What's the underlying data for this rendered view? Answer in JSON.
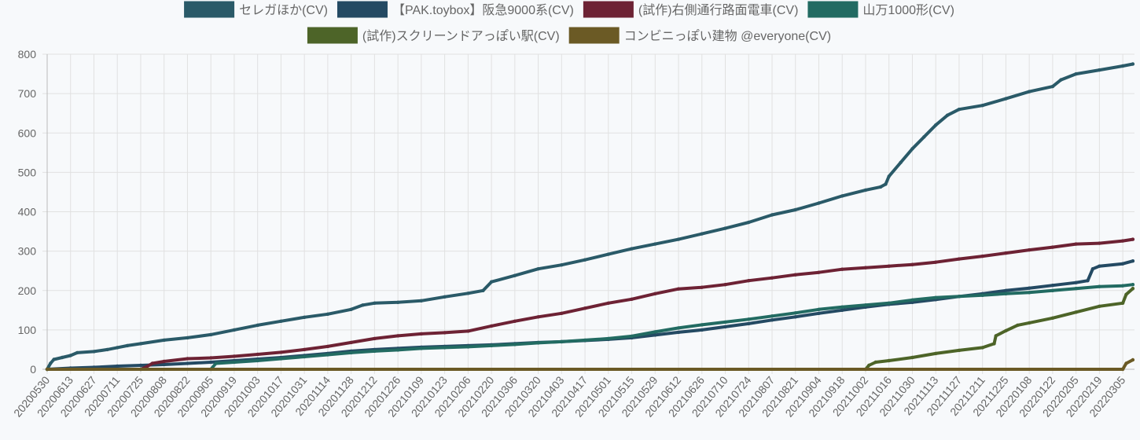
{
  "chart_data": {
    "type": "line",
    "legend_position": "top",
    "grid": true,
    "ylim": [
      0,
      800
    ],
    "yticks": [
      0,
      100,
      200,
      300,
      400,
      500,
      600,
      700,
      800
    ],
    "x_range": [
      "20200530",
      "20220312"
    ],
    "xticks": [
      "20200530",
      "20200613",
      "20200627",
      "20200711",
      "20200725",
      "20200808",
      "20200822",
      "20200905",
      "20200919",
      "20201003",
      "20201017",
      "20201031",
      "20201114",
      "20201128",
      "20201212",
      "20201226",
      "20210109",
      "20210123",
      "20210206",
      "20210220",
      "20210306",
      "20210320",
      "20210403",
      "20210417",
      "20210501",
      "20210515",
      "20210529",
      "20210612",
      "20210626",
      "20210710",
      "20210724",
      "20210807",
      "20210821",
      "20210904",
      "20210918",
      "20211002",
      "20211016",
      "20211030",
      "20211113",
      "20211127",
      "20211211",
      "20211225",
      "20220108",
      "20220122",
      "20220205",
      "20220219",
      "20220305"
    ],
    "series": [
      {
        "name": "セレガほか(CV)",
        "color": "#2a5a68",
        "points": [
          [
            "20200530",
            0
          ],
          [
            "20200601",
            15
          ],
          [
            "20200603",
            25
          ],
          [
            "20200608",
            30
          ],
          [
            "20200613",
            35
          ],
          [
            "20200617",
            42
          ],
          [
            "20200627",
            45
          ],
          [
            "20200705",
            50
          ],
          [
            "20200711",
            55
          ],
          [
            "20200717",
            60
          ],
          [
            "20200725",
            65
          ],
          [
            "20200808",
            74
          ],
          [
            "20200822",
            80
          ],
          [
            "20200905",
            88
          ],
          [
            "20200919",
            100
          ],
          [
            "20201003",
            112
          ],
          [
            "20201017",
            122
          ],
          [
            "20201031",
            132
          ],
          [
            "20201114",
            140
          ],
          [
            "20201128",
            152
          ],
          [
            "20201205",
            163
          ],
          [
            "20201212",
            168
          ],
          [
            "20201226",
            170
          ],
          [
            "20210109",
            174
          ],
          [
            "20210123",
            184
          ],
          [
            "20210206",
            193
          ],
          [
            "20210215",
            200
          ],
          [
            "20210220",
            222
          ],
          [
            "20210306",
            238
          ],
          [
            "20210320",
            255
          ],
          [
            "20210403",
            265
          ],
          [
            "20210417",
            278
          ],
          [
            "20210501",
            292
          ],
          [
            "20210515",
            306
          ],
          [
            "20210529",
            318
          ],
          [
            "20210612",
            330
          ],
          [
            "20210626",
            344
          ],
          [
            "20210710",
            358
          ],
          [
            "20210724",
            373
          ],
          [
            "20210807",
            392
          ],
          [
            "20210821",
            405
          ],
          [
            "20210904",
            422
          ],
          [
            "20210918",
            440
          ],
          [
            "20211002",
            455
          ],
          [
            "20211011",
            463
          ],
          [
            "20211014",
            470
          ],
          [
            "20211016",
            490
          ],
          [
            "20211023",
            525
          ],
          [
            "20211030",
            560
          ],
          [
            "20211106",
            590
          ],
          [
            "20211113",
            620
          ],
          [
            "20211120",
            645
          ],
          [
            "20211127",
            660
          ],
          [
            "20211211",
            670
          ],
          [
            "20211225",
            687
          ],
          [
            "20220108",
            705
          ],
          [
            "20220122",
            718
          ],
          [
            "20220127",
            735
          ],
          [
            "20220205",
            750
          ],
          [
            "20220219",
            760
          ],
          [
            "20220305",
            770
          ],
          [
            "20220311",
            775
          ]
        ]
      },
      {
        "name": "【PAK.toybox】阪急9000系(CV)",
        "color": "#244a63",
        "points": [
          [
            "20200530",
            0
          ],
          [
            "20200613",
            3
          ],
          [
            "20200627",
            5
          ],
          [
            "20200711",
            8
          ],
          [
            "20200725",
            10
          ],
          [
            "20200808",
            12
          ],
          [
            "20200822",
            15
          ],
          [
            "20200905",
            18
          ],
          [
            "20200919",
            22
          ],
          [
            "20201003",
            26
          ],
          [
            "20201017",
            30
          ],
          [
            "20201031",
            35
          ],
          [
            "20201114",
            40
          ],
          [
            "20201128",
            46
          ],
          [
            "20201212",
            50
          ],
          [
            "20201226",
            53
          ],
          [
            "20210109",
            56
          ],
          [
            "20210123",
            58
          ],
          [
            "20210206",
            60
          ],
          [
            "20210220",
            62
          ],
          [
            "20210306",
            65
          ],
          [
            "20210320",
            68
          ],
          [
            "20210403",
            70
          ],
          [
            "20210417",
            73
          ],
          [
            "20210501",
            76
          ],
          [
            "20210515",
            80
          ],
          [
            "20210529",
            87
          ],
          [
            "20210612",
            94
          ],
          [
            "20210626",
            100
          ],
          [
            "20210710",
            108
          ],
          [
            "20210724",
            116
          ],
          [
            "20210807",
            125
          ],
          [
            "20210821",
            133
          ],
          [
            "20210904",
            142
          ],
          [
            "20210918",
            150
          ],
          [
            "20211002",
            158
          ],
          [
            "20211016",
            165
          ],
          [
            "20211030",
            170
          ],
          [
            "20211113",
            177
          ],
          [
            "20211127",
            185
          ],
          [
            "20211211",
            192
          ],
          [
            "20211225",
            200
          ],
          [
            "20220108",
            206
          ],
          [
            "20220122",
            213
          ],
          [
            "20220205",
            220
          ],
          [
            "20220212",
            225
          ],
          [
            "20220215",
            255
          ],
          [
            "20220219",
            262
          ],
          [
            "20220305",
            268
          ],
          [
            "20220311",
            275
          ]
        ]
      },
      {
        "name": "(試作)右側通行路面電車(CV)",
        "color": "#6d2234",
        "points": [
          [
            "20200725",
            0
          ],
          [
            "20200728",
            5
          ],
          [
            "20200801",
            15
          ],
          [
            "20200808",
            20
          ],
          [
            "20200822",
            27
          ],
          [
            "20200905",
            29
          ],
          [
            "20200919",
            33
          ],
          [
            "20201003",
            38
          ],
          [
            "20201017",
            43
          ],
          [
            "20201031",
            50
          ],
          [
            "20201114",
            58
          ],
          [
            "20201128",
            68
          ],
          [
            "20201212",
            78
          ],
          [
            "20201226",
            85
          ],
          [
            "20210109",
            90
          ],
          [
            "20210123",
            93
          ],
          [
            "20210206",
            97
          ],
          [
            "20210220",
            110
          ],
          [
            "20210306",
            122
          ],
          [
            "20210320",
            133
          ],
          [
            "20210403",
            142
          ],
          [
            "20210417",
            155
          ],
          [
            "20210501",
            168
          ],
          [
            "20210515",
            178
          ],
          [
            "20210529",
            192
          ],
          [
            "20210612",
            204
          ],
          [
            "20210626",
            208
          ],
          [
            "20210710",
            215
          ],
          [
            "20210724",
            225
          ],
          [
            "20210807",
            232
          ],
          [
            "20210821",
            240
          ],
          [
            "20210904",
            246
          ],
          [
            "20210918",
            254
          ],
          [
            "20211002",
            258
          ],
          [
            "20211016",
            262
          ],
          [
            "20211030",
            266
          ],
          [
            "20211113",
            272
          ],
          [
            "20211127",
            280
          ],
          [
            "20211211",
            287
          ],
          [
            "20211225",
            295
          ],
          [
            "20220108",
            303
          ],
          [
            "20220122",
            310
          ],
          [
            "20220205",
            318
          ],
          [
            "20220219",
            320
          ],
          [
            "20220305",
            326
          ],
          [
            "20220311",
            330
          ]
        ]
      },
      {
        "name": "山万1000形(CV)",
        "color": "#226b62",
        "points": [
          [
            "20200530",
            0
          ],
          [
            "20200725",
            0
          ],
          [
            "20200905",
            0
          ],
          [
            "20200908",
            15
          ],
          [
            "20200919",
            18
          ],
          [
            "20201003",
            22
          ],
          [
            "20201017",
            27
          ],
          [
            "20201031",
            32
          ],
          [
            "20201114",
            37
          ],
          [
            "20201128",
            42
          ],
          [
            "20201212",
            46
          ],
          [
            "20201226",
            49
          ],
          [
            "20210109",
            53
          ],
          [
            "20210123",
            55
          ],
          [
            "20210206",
            57
          ],
          [
            "20210220",
            60
          ],
          [
            "20210306",
            63
          ],
          [
            "20210320",
            67
          ],
          [
            "20210403",
            70
          ],
          [
            "20210417",
            74
          ],
          [
            "20210501",
            78
          ],
          [
            "20210515",
            84
          ],
          [
            "20210529",
            95
          ],
          [
            "20210612",
            105
          ],
          [
            "20210626",
            113
          ],
          [
            "20210710",
            120
          ],
          [
            "20210724",
            127
          ],
          [
            "20210807",
            135
          ],
          [
            "20210821",
            143
          ],
          [
            "20210904",
            152
          ],
          [
            "20210918",
            158
          ],
          [
            "20211002",
            163
          ],
          [
            "20211016",
            168
          ],
          [
            "20211030",
            176
          ],
          [
            "20211113",
            182
          ],
          [
            "20211127",
            185
          ],
          [
            "20211211",
            188
          ],
          [
            "20211225",
            192
          ],
          [
            "20220108",
            195
          ],
          [
            "20220122",
            200
          ],
          [
            "20220205",
            205
          ],
          [
            "20220219",
            210
          ],
          [
            "20220305",
            212
          ],
          [
            "20220311",
            215
          ]
        ]
      },
      {
        "name": "(試作)スクリーンドアっぽい駅(CV)",
        "color": "#4d6428",
        "points": [
          [
            "20200530",
            0
          ],
          [
            "20211002",
            0
          ],
          [
            "20211004",
            10
          ],
          [
            "20211008",
            18
          ],
          [
            "20211016",
            22
          ],
          [
            "20211030",
            30
          ],
          [
            "20211113",
            40
          ],
          [
            "20211127",
            48
          ],
          [
            "20211211",
            55
          ],
          [
            "20211218",
            65
          ],
          [
            "20211219",
            85
          ],
          [
            "20211225",
            98
          ],
          [
            "20220101",
            112
          ],
          [
            "20220108",
            118
          ],
          [
            "20220122",
            130
          ],
          [
            "20220205",
            145
          ],
          [
            "20220219",
            160
          ],
          [
            "20220305",
            168
          ],
          [
            "20220307",
            190
          ],
          [
            "20220311",
            205
          ]
        ]
      },
      {
        "name": "コンビニっぽい建物 @everyone(CV)",
        "color": "#6b5a25",
        "points": [
          [
            "20200530",
            0
          ],
          [
            "20220305",
            0
          ],
          [
            "20220307",
            15
          ],
          [
            "20220311",
            24
          ]
        ]
      }
    ]
  }
}
